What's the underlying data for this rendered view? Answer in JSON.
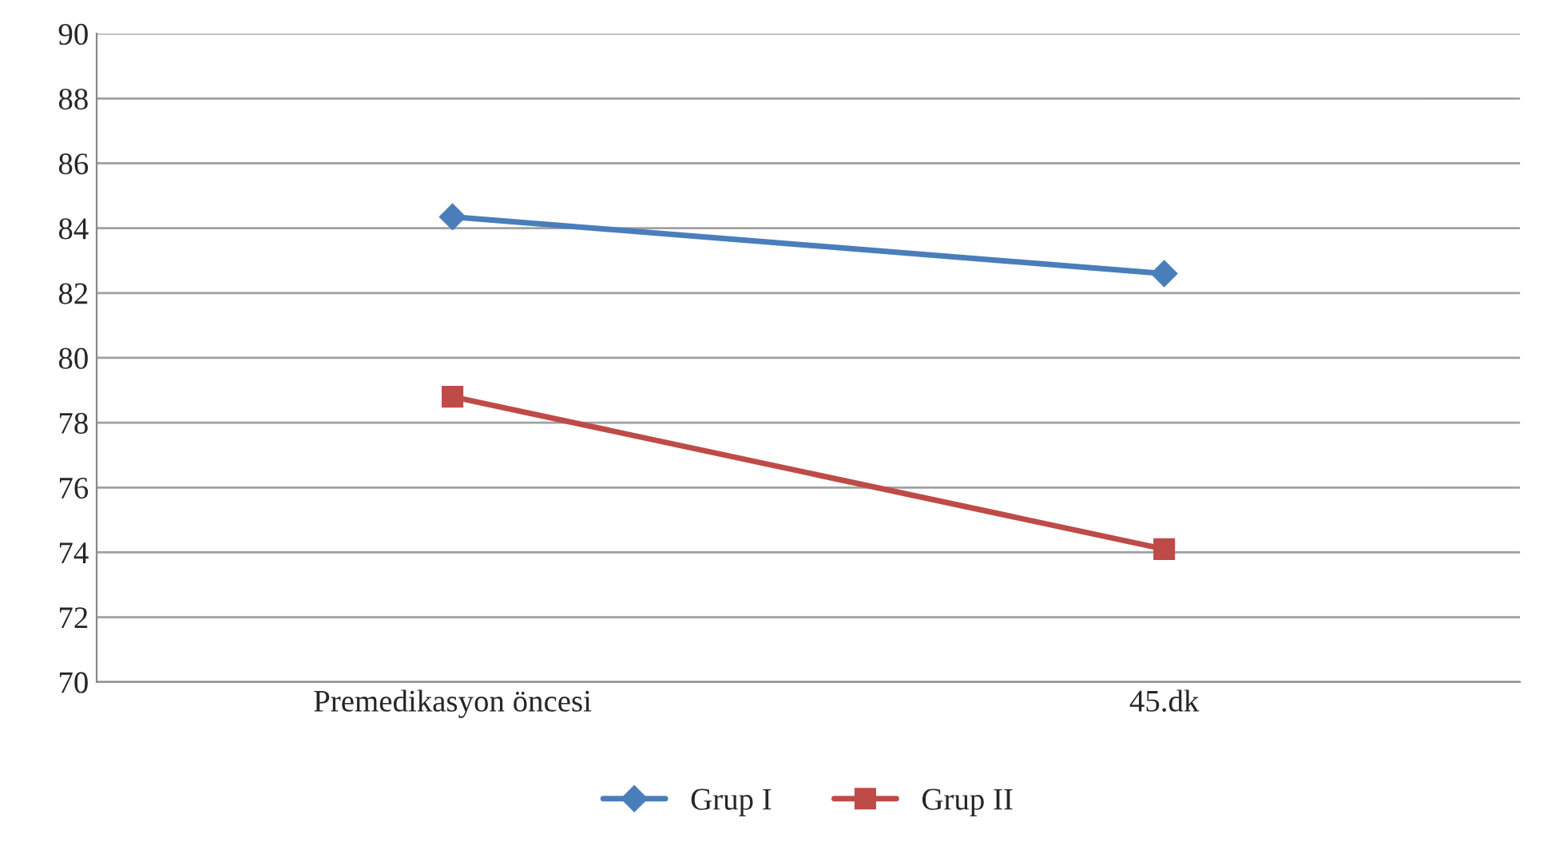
{
  "chart_data": {
    "type": "line",
    "categories": [
      "Premedikasyon öncesi",
      "45.dk"
    ],
    "series": [
      {
        "name": "Grup I",
        "color": "#4a7ebb",
        "marker": "diamond",
        "values": [
          84.35,
          82.6
        ]
      },
      {
        "name": "Grup II",
        "color": "#be4b48",
        "marker": "square",
        "values": [
          78.8,
          74.1
        ]
      }
    ],
    "ylim": [
      70,
      90
    ],
    "yticks": [
      70,
      72,
      74,
      76,
      78,
      80,
      82,
      84,
      86,
      88,
      90
    ],
    "grid": "y",
    "legend": "bottom",
    "line_style": "solid"
  }
}
